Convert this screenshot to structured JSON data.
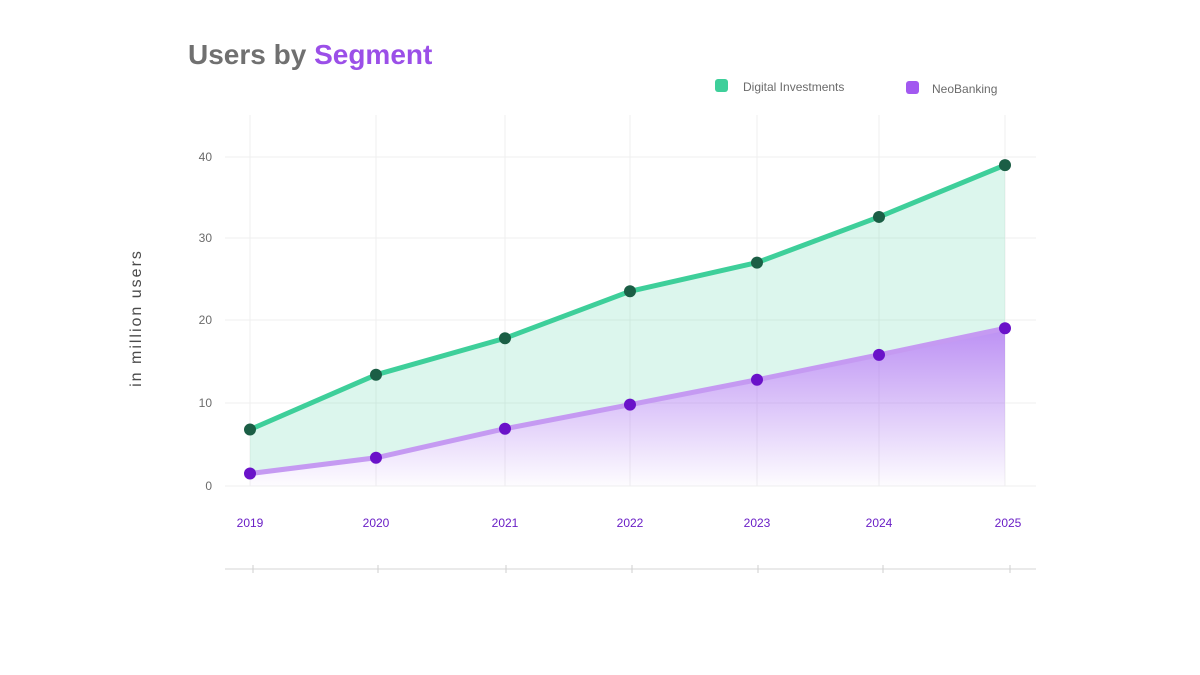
{
  "chart_data": {
    "type": "area",
    "title": {
      "part1": "Users by ",
      "part2": "Segment",
      "part1_color": "#707070",
      "part2_color": "#9b4fe8"
    },
    "ylabel": "in million users",
    "xlabel": "",
    "categories": [
      "2019",
      "2020",
      "2021",
      "2022",
      "2023",
      "2024",
      "2025"
    ],
    "y_ticks": [
      0,
      10,
      20,
      30,
      40
    ],
    "ylim": [
      0,
      45
    ],
    "grid": true,
    "legend_position": "top-right",
    "series": [
      {
        "name": "Digital Investments",
        "values": [
          6.8,
          13.4,
          17.8,
          23.5,
          27,
          32.6,
          39
        ],
        "line_color": "#3ecf9a",
        "marker_color": "#1b5e45",
        "fill_color": "#3ecf9a",
        "legend_color": "#3ecf9a"
      },
      {
        "name": "NeoBanking",
        "values": [
          1.5,
          3.4,
          6.9,
          9.8,
          12.8,
          15.8,
          19
        ],
        "line_color": "#c59af2",
        "marker_color": "#6a12c9",
        "fill_color": "#a66cf0",
        "legend_color": "#a259f0"
      }
    ]
  }
}
